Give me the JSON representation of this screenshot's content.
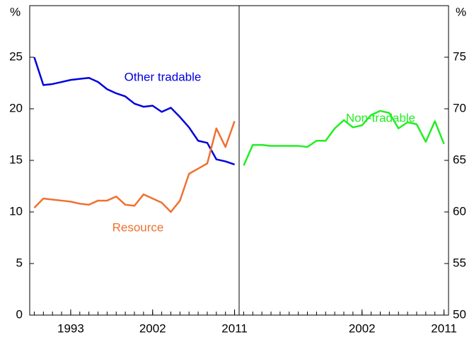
{
  "chart_data": [
    {
      "type": "line",
      "y_label": "%",
      "x": [
        1989,
        1990,
        1991,
        1992,
        1993,
        1994,
        1995,
        1996,
        1997,
        1998,
        1999,
        2000,
        2001,
        2002,
        2003,
        2004,
        2005,
        2006,
        2007,
        2008,
        2009,
        2010,
        2011
      ],
      "xlim": [
        1988.5,
        2011.5
      ],
      "xticks": [
        1993,
        2002,
        2011
      ],
      "ylim": [
        0,
        30
      ],
      "yticks": [
        0,
        5,
        10,
        15,
        20,
        25
      ],
      "series": [
        {
          "name": "Other tradable",
          "color": "#0000dd",
          "values": [
            25.0,
            22.3,
            22.4,
            22.6,
            22.8,
            22.9,
            23.0,
            22.6,
            21.9,
            21.5,
            21.2,
            20.5,
            20.2,
            20.3,
            19.7,
            20.1,
            19.2,
            18.2,
            16.9,
            16.7,
            15.1,
            14.9,
            14.6
          ]
        },
        {
          "name": "Resource",
          "color": "#f07030",
          "values": [
            10.4,
            11.3,
            11.2,
            11.1,
            11.0,
            10.8,
            10.7,
            11.1,
            11.1,
            11.5,
            10.7,
            10.6,
            11.7,
            11.3,
            10.9,
            10.0,
            11.1,
            13.7,
            14.2,
            14.7,
            18.1,
            16.3,
            18.8
          ]
        }
      ]
    },
    {
      "type": "line",
      "y_label": "%",
      "x": [
        1989,
        1990,
        1991,
        1992,
        1993,
        1994,
        1995,
        1996,
        1997,
        1998,
        1999,
        2000,
        2001,
        2002,
        2003,
        2004,
        2005,
        2006,
        2007,
        2008,
        2009,
        2010,
        2011
      ],
      "xlim": [
        1988.5,
        2011.5
      ],
      "xticks": [
        2002,
        2011
      ],
      "y2lim": [
        50,
        80
      ],
      "y2ticks": [
        50,
        55,
        60,
        65,
        70,
        75
      ],
      "series": [
        {
          "name": "Non-tradable",
          "color": "#22ee22",
          "axis": "y2",
          "values": [
            64.5,
            66.5,
            66.5,
            66.4,
            66.4,
            66.4,
            66.4,
            66.3,
            66.9,
            66.9,
            68.1,
            68.9,
            68.2,
            68.4,
            69.4,
            69.8,
            69.6,
            68.1,
            68.7,
            68.5,
            66.8,
            68.8,
            66.6
          ]
        }
      ]
    }
  ]
}
